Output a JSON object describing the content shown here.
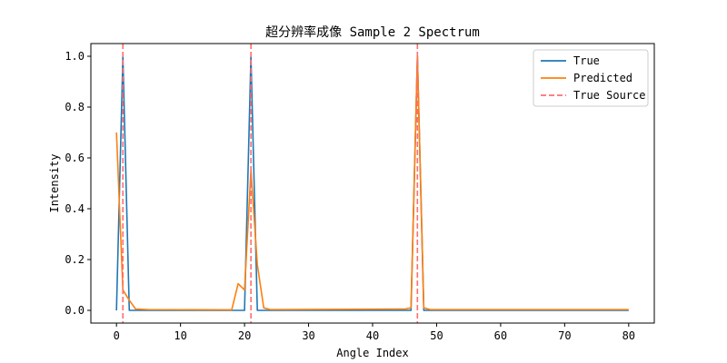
{
  "chart_data": {
    "type": "line",
    "title": "超分辨率成像 Sample 2 Spectrum",
    "xlabel": "Angle Index",
    "ylabel": "Intensity",
    "xlim": [
      -4,
      84
    ],
    "ylim": [
      -0.05,
      1.05
    ],
    "x_ticks": [
      0,
      10,
      20,
      30,
      40,
      50,
      60,
      70,
      80
    ],
    "y_ticks": [
      0.0,
      0.2,
      0.4,
      0.6,
      0.8,
      1.0
    ],
    "x_tick_labels": [
      "0",
      "10",
      "20",
      "30",
      "40",
      "50",
      "60",
      "70",
      "80"
    ],
    "y_tick_labels": [
      "0.0",
      "0.2",
      "0.4",
      "0.6",
      "0.8",
      "1.0"
    ],
    "grid": false,
    "legend_position": "top-right",
    "series": [
      {
        "name": "True",
        "color": "#1f77b4",
        "x": [
          0,
          1,
          2,
          20,
          21,
          22,
          46,
          47,
          48,
          80
        ],
        "values": [
          0,
          1.0,
          0,
          0,
          1.0,
          0,
          0,
          1.0,
          0,
          0
        ]
      },
      {
        "name": "Predicted",
        "color": "#ff7f0e",
        "x": [
          0,
          1,
          2,
          3,
          5,
          18,
          19,
          20,
          21,
          22,
          23,
          24,
          45,
          46,
          47,
          48,
          49,
          80
        ],
        "values": [
          0.7,
          0.08,
          0.04,
          0.005,
          0.003,
          0.002,
          0.105,
          0.08,
          0.55,
          0.18,
          0.01,
          0.003,
          0.005,
          0.01,
          1.0,
          0.01,
          0.003,
          0.003
        ]
      }
    ],
    "vlines": {
      "name": "True Source",
      "color": "#ff6e6e",
      "style": "dashed",
      "x": [
        1,
        21,
        47
      ]
    }
  }
}
